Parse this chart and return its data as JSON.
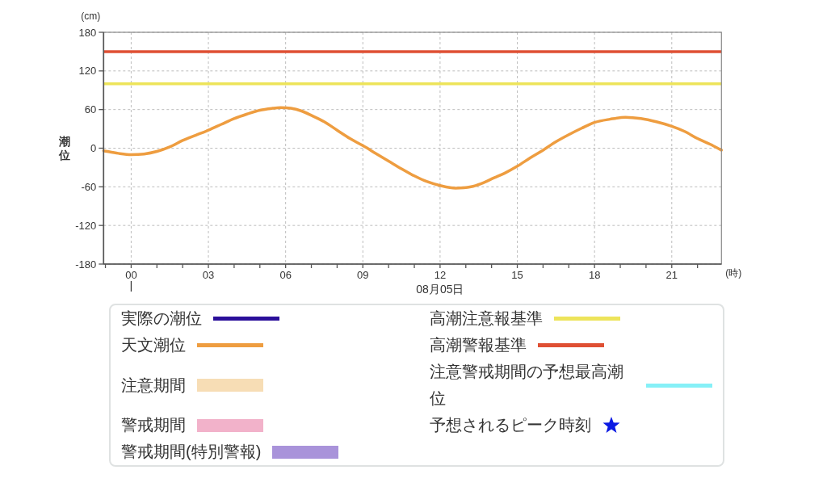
{
  "chart_data": {
    "type": "line",
    "xlabel": "(時)",
    "ylabel": "潮位",
    "annotations": [
      "(cm)",
      "08月05日"
    ],
    "xlim": [
      -1.07,
      22.93
    ],
    "ylim": [
      -180,
      180
    ],
    "xticks": [
      {
        "value": -1,
        "label": null
      },
      {
        "value": 0,
        "label": "00"
      },
      {
        "value": 1,
        "label": null
      },
      {
        "value": 2,
        "label": null
      },
      {
        "value": 3,
        "label": "03"
      },
      {
        "value": 4,
        "label": null
      },
      {
        "value": 5,
        "label": null
      },
      {
        "value": 6,
        "label": "06"
      },
      {
        "value": 7,
        "label": null
      },
      {
        "value": 8,
        "label": null
      },
      {
        "value": 9,
        "label": "09"
      },
      {
        "value": 10,
        "label": null
      },
      {
        "value": 11,
        "label": null
      },
      12,
      {
        "value": 13,
        "label": null
      },
      {
        "value": 14,
        "label": null
      },
      15,
      {
        "value": 16,
        "label": null
      },
      {
        "value": 17,
        "label": null
      },
      18,
      {
        "value": 19,
        "label": null
      },
      {
        "value": 20,
        "label": null
      },
      21,
      {
        "value": 22,
        "label": null
      }
    ],
    "yticks": [
      -180,
      -120,
      -60,
      0,
      60,
      120,
      180
    ],
    "grid": true,
    "legend": "bottom",
    "x": [
      -1.07,
      -0.5,
      0,
      0.5,
      1,
      1.5,
      2,
      2.5,
      3,
      3.5,
      4,
      4.5,
      5,
      5.5,
      5.8,
      6.2,
      6.6,
      7,
      7.5,
      8,
      8.5,
      9,
      9.5,
      10,
      10.5,
      11,
      11.5,
      12,
      12.6,
      13.2,
      13.6,
      14.1,
      14.5,
      15,
      15.5,
      16,
      16.5,
      17,
      17.5,
      18,
      18.6,
      19.2,
      19.8,
      20.4,
      21,
      21.5,
      22,
      22.5,
      22.93
    ],
    "series": [
      {
        "name": "実際の潮位",
        "type": "line",
        "color": "#2a0f9a",
        "values": [
          null,
          null,
          null,
          null,
          null,
          null,
          null,
          null,
          null,
          null,
          null,
          null,
          null,
          null,
          null,
          null,
          null,
          null,
          null,
          null,
          null,
          null,
          null,
          null,
          null,
          null,
          null,
          null,
          null,
          null,
          null,
          null,
          null,
          null,
          null,
          null,
          null,
          null,
          null,
          null,
          null,
          null,
          null,
          null,
          null,
          null,
          null,
          null,
          null
        ]
      },
      {
        "name": "天文潮位",
        "type": "line",
        "color": "#ee9d40",
        "values": [
          -4,
          -8,
          -10,
          -9,
          -5,
          2,
          12,
          20,
          28,
          37,
          46,
          53,
          59,
          62,
          63,
          62,
          58,
          51,
          41,
          28,
          15,
          4,
          -8,
          -20,
          -32,
          -43,
          -52,
          -58,
          -62,
          -60,
          -55,
          -46,
          -39,
          -28,
          -15,
          -3,
          10,
          21,
          31,
          40,
          45,
          48,
          46,
          41,
          34,
          26,
          15,
          6,
          -3
        ]
      },
      {
        "name": "注意期間",
        "type": "area",
        "color": "#f7ddb5",
        "values": [
          null,
          null,
          null,
          null,
          null,
          null,
          null,
          null,
          null,
          null,
          null,
          null,
          null,
          null,
          null,
          null,
          null,
          null,
          null,
          null,
          null,
          null,
          null,
          null,
          null,
          null,
          null,
          null,
          null,
          null,
          null,
          null,
          null,
          null,
          null,
          null,
          null,
          null,
          null,
          null,
          null,
          null,
          null,
          null,
          null,
          null,
          null,
          null,
          null
        ]
      },
      {
        "name": "警戒期間",
        "type": "area",
        "color": "#f2b2ca",
        "values": [
          null,
          null,
          null,
          null,
          null,
          null,
          null,
          null,
          null,
          null,
          null,
          null,
          null,
          null,
          null,
          null,
          null,
          null,
          null,
          null,
          null,
          null,
          null,
          null,
          null,
          null,
          null,
          null,
          null,
          null,
          null,
          null,
          null,
          null,
          null,
          null,
          null,
          null,
          null,
          null,
          null,
          null,
          null,
          null,
          null,
          null,
          null,
          null,
          null
        ]
      },
      {
        "name": "警戒期間(特別警報)",
        "type": "area",
        "color": "#a993da",
        "values": [
          null,
          null,
          null,
          null,
          null,
          null,
          null,
          null,
          null,
          null,
          null,
          null,
          null,
          null,
          null,
          null,
          null,
          null,
          null,
          null,
          null,
          null,
          null,
          null,
          null,
          null,
          null,
          null,
          null,
          null,
          null,
          null,
          null,
          null,
          null,
          null,
          null,
          null,
          null,
          null,
          null,
          null,
          null,
          null,
          null,
          null,
          null,
          null,
          null
        ]
      },
      {
        "name": "注意警戒期間の予想最高潮位",
        "type": "line",
        "color": "#86f0f7",
        "values": [
          null,
          null,
          null,
          null,
          null,
          null,
          null,
          null,
          null,
          null,
          null,
          null,
          null,
          null,
          null,
          null,
          null,
          null,
          null,
          null,
          null,
          null,
          null,
          null,
          null,
          null,
          null,
          null,
          null,
          null,
          null,
          null,
          null,
          null,
          null,
          null,
          null,
          null,
          null,
          null,
          null,
          null,
          null,
          null,
          null,
          null,
          null,
          null,
          null
        ]
      },
      {
        "name": "予想されるピーク時刻",
        "type": "scatter",
        "marker": "star",
        "color": "#0b1ae3",
        "values": [
          null,
          null,
          null,
          null,
          null,
          null,
          null,
          null,
          null,
          null,
          null,
          null,
          null,
          null,
          null,
          null,
          null,
          null,
          null,
          null,
          null,
          null,
          null,
          null,
          null,
          null,
          null,
          null,
          null,
          null,
          null,
          null,
          null,
          null,
          null,
          null,
          null,
          null,
          null,
          null,
          null,
          null,
          null,
          null,
          null,
          null,
          null,
          null,
          null
        ]
      }
    ],
    "ref_lines": [
      {
        "axis": "y",
        "value": 100,
        "label": "高潮注意報基準",
        "color": "#ede45a"
      },
      {
        "axis": "y",
        "value": 150,
        "label": "高潮警報基準",
        "color": "#df4f33"
      }
    ]
  }
}
